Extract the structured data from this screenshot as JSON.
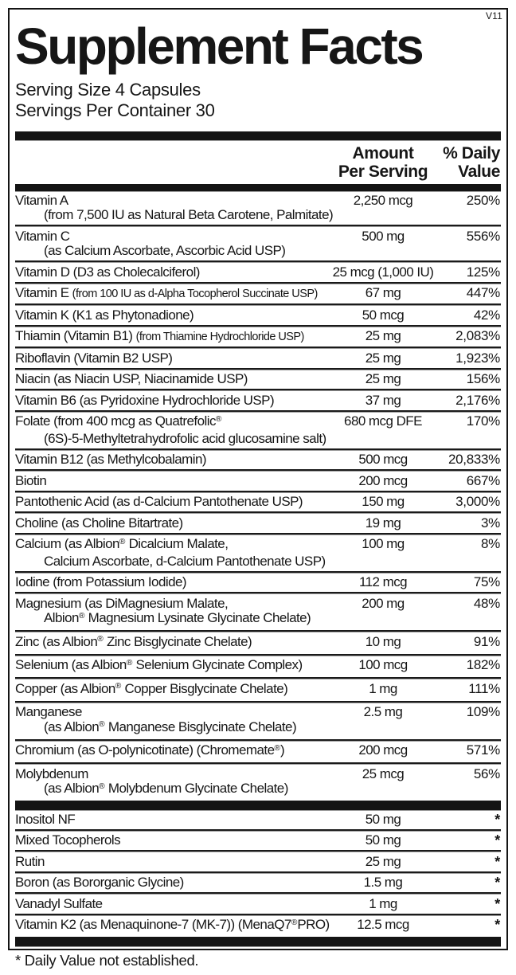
{
  "version": "V11",
  "title": "Supplement Facts",
  "serving": {
    "size": "Serving Size 4 Capsules",
    "per_container": "Servings Per Container 30"
  },
  "header": {
    "amount_line1": "Amount",
    "amount_line2": "Per Serving",
    "dv_line1": "% Daily",
    "dv_line2": "Value"
  },
  "sections": [
    {
      "id": "main",
      "rows": [
        {
          "name": "Vitamin A",
          "name2": "(from 7,500 IU as Natural Beta Carotene, Palmitate)",
          "amount": "2,250 mcg",
          "dv": "250%"
        },
        {
          "name": "Vitamin C",
          "name2": "(as Calcium Ascorbate, Ascorbic Acid USP)",
          "amount": "500 mg",
          "dv": "556%"
        },
        {
          "name": "Vitamin D (D3 as Cholecalciferol)",
          "amount": "25 mcg (1,000 IU)",
          "dv": "125%"
        },
        {
          "name": "Vitamin E",
          "name_small": "(from 100 IU as d-Alpha Tocopherol Succinate USP)",
          "amount": "67 mg",
          "dv": "447%"
        },
        {
          "name": "Vitamin K (K1 as Phytonadione)",
          "amount": "50 mcg",
          "dv": "42%"
        },
        {
          "name": "Thiamin (Vitamin B1)",
          "name_small": "(from Thiamine Hydrochloride USP)",
          "amount": "25 mg",
          "dv": "2,083%"
        },
        {
          "name": "Riboflavin (Vitamin B2 USP)",
          "amount": "25 mg",
          "dv": "1,923%"
        },
        {
          "name": "Niacin (as Niacin USP, Niacinamide USP)",
          "amount": "25 mg",
          "dv": "156%"
        },
        {
          "name": "Vitamin B6 (as Pyridoxine Hydrochloride USP)",
          "amount": "37 mg",
          "dv": "2,176%"
        },
        {
          "name": "Folate (from 400 mcg as Quatrefolic®",
          "name2": "(6S)-5-Methyltetrahydrofolic acid glucosamine salt)",
          "amount": "680 mcg DFE",
          "dv": "170%"
        },
        {
          "name": "Vitamin B12 (as Methylcobalamin)",
          "amount": "500 mcg",
          "dv": "20,833%"
        },
        {
          "name": "Biotin",
          "amount": "200 mcg",
          "dv": "667%"
        },
        {
          "name": "Pantothenic Acid (as d-Calcium Pantothenate USP)",
          "amount": "150 mg",
          "dv": "3,000%"
        },
        {
          "name": "Choline (as Choline Bitartrate)",
          "amount": "19 mg",
          "dv": "3%"
        },
        {
          "name": "Calcium (as Albion® Dicalcium Malate,",
          "name2": "Calcium Ascorbate, d-Calcium Pantothenate USP)",
          "amount": "100 mg",
          "dv": "8%"
        },
        {
          "name": "Iodine (from Potassium Iodide)",
          "amount": "112 mcg",
          "dv": "75%"
        },
        {
          "name": "Magnesium (as DiMagnesium Malate,",
          "name2": "Albion® Magnesium Lysinate Glycinate Chelate)",
          "amount": "200 mg",
          "dv": "48%"
        },
        {
          "name": "Zinc (as Albion® Zinc Bisglycinate Chelate)",
          "amount": "10 mg",
          "dv": "91%"
        },
        {
          "name": "Selenium (as Albion® Selenium Glycinate Complex)",
          "amount": "100 mcg",
          "dv": "182%"
        },
        {
          "name": "Copper (as Albion® Copper Bisglycinate Chelate)",
          "amount": "1 mg",
          "dv": "111%"
        },
        {
          "name": "Manganese",
          "name2": "(as Albion® Manganese Bisglycinate Chelate)",
          "amount": "2.5 mg",
          "dv": "109%"
        },
        {
          "name": "Chromium (as O-polynicotinate) (Chromemate®)",
          "amount": "200 mcg",
          "dv": "571%"
        },
        {
          "name": "Molybdenum",
          "name2": "(as Albion® Molybdenum Glycinate Chelate)",
          "amount": "25 mcg",
          "dv": "56%"
        }
      ]
    },
    {
      "id": "other",
      "rows": [
        {
          "name": "Inositol NF",
          "amount": "50 mg",
          "dv": "*"
        },
        {
          "name": "Mixed Tocopherols",
          "amount": "50 mg",
          "dv": "*"
        },
        {
          "name": "Rutin",
          "amount": "25 mg",
          "dv": "*"
        },
        {
          "name": "Boron (as Bororganic Glycine)",
          "amount": "1.5 mg",
          "dv": "*"
        },
        {
          "name": "Vanadyl Sulfate",
          "amount": "1 mg",
          "dv": "*"
        },
        {
          "name": "Vitamin K2 (as Menaquinone-7 (MK-7)) (MenaQ7®PRO)",
          "amount": "12.5 mcg",
          "dv": "*"
        }
      ]
    }
  ],
  "footnote": "* Daily Value not established.",
  "colors": {
    "ink": "#141414",
    "paper": "#ffffff"
  }
}
